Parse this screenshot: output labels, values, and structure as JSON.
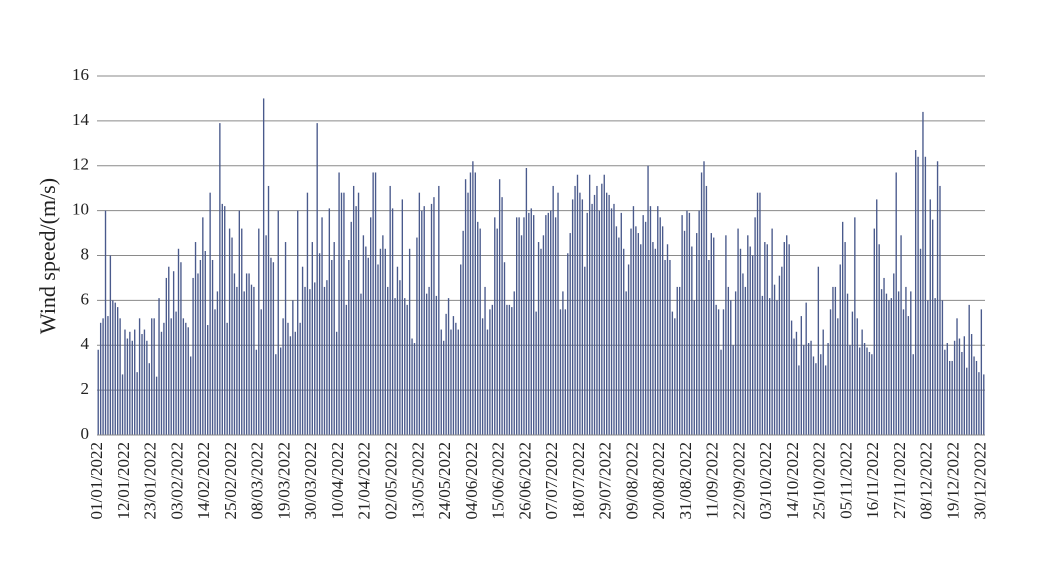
{
  "chart_data": {
    "type": "bar",
    "y_label": "Wind speed/(m/s)",
    "color": "#4a5a8c",
    "grid": true,
    "ylim": [
      0,
      16
    ],
    "yticks": [
      0,
      2,
      4,
      6,
      8,
      10,
      12,
      14,
      16
    ],
    "categories": [
      "01/01/2022",
      null,
      null,
      null,
      null,
      null,
      null,
      null,
      null,
      null,
      null,
      "12/01/2022",
      null,
      null,
      null,
      null,
      null,
      null,
      null,
      null,
      null,
      null,
      "23/01/2022",
      null,
      null,
      null,
      null,
      null,
      null,
      null,
      null,
      null,
      null,
      "03/02/2022",
      null,
      null,
      null,
      null,
      null,
      null,
      null,
      null,
      null,
      null,
      "14/02/2022",
      null,
      null,
      null,
      null,
      null,
      null,
      null,
      null,
      null,
      null,
      "25/02/2022",
      null,
      null,
      null,
      null,
      null,
      null,
      null,
      null,
      null,
      null,
      "08/03/2022",
      null,
      null,
      null,
      null,
      null,
      null,
      null,
      null,
      null,
      null,
      "19/03/2022",
      null,
      null,
      null,
      null,
      null,
      null,
      null,
      null,
      null,
      null,
      "30/03/2022",
      null,
      null,
      null,
      null,
      null,
      null,
      null,
      null,
      null,
      null,
      "10/04/2022",
      null,
      null,
      null,
      null,
      null,
      null,
      null,
      null,
      null,
      null,
      "21/04/2022",
      null,
      null,
      null,
      null,
      null,
      null,
      null,
      null,
      null,
      null,
      "02/05/2022",
      null,
      null,
      null,
      null,
      null,
      null,
      null,
      null,
      null,
      null,
      "13/05/2022",
      null,
      null,
      null,
      null,
      null,
      null,
      null,
      null,
      null,
      null,
      "24/05/2022",
      null,
      null,
      null,
      null,
      null,
      null,
      null,
      null,
      null,
      null,
      "04/06/2022",
      null,
      null,
      null,
      null,
      null,
      null,
      null,
      null,
      null,
      null,
      "15/06/2022",
      null,
      null,
      null,
      null,
      null,
      null,
      null,
      null,
      null,
      null,
      "26/06/2022",
      null,
      null,
      null,
      null,
      null,
      null,
      null,
      null,
      null,
      null,
      "07/07/2022",
      null,
      null,
      null,
      null,
      null,
      null,
      null,
      null,
      null,
      null,
      "18/07/2022",
      null,
      null,
      null,
      null,
      null,
      null,
      null,
      null,
      null,
      null,
      "29/07/2022",
      null,
      null,
      null,
      null,
      null,
      null,
      null,
      null,
      null,
      null,
      "09/08/2022",
      null,
      null,
      null,
      null,
      null,
      null,
      null,
      null,
      null,
      null,
      "20/08/2022",
      null,
      null,
      null,
      null,
      null,
      null,
      null,
      null,
      null,
      null,
      "31/08/2022",
      null,
      null,
      null,
      null,
      null,
      null,
      null,
      null,
      null,
      null,
      "11/09/2022",
      null,
      null,
      null,
      null,
      null,
      null,
      null,
      null,
      null,
      null,
      "22/09/2022",
      null,
      null,
      null,
      null,
      null,
      null,
      null,
      null,
      null,
      null,
      "03/10/2022",
      null,
      null,
      null,
      null,
      null,
      null,
      null,
      null,
      null,
      null,
      "14/10/2022",
      null,
      null,
      null,
      null,
      null,
      null,
      null,
      null,
      null,
      null,
      "25/10/2022",
      null,
      null,
      null,
      null,
      null,
      null,
      null,
      null,
      null,
      null,
      "05/11/2022",
      null,
      null,
      null,
      null,
      null,
      null,
      null,
      null,
      null,
      null,
      "16/11/2022",
      null,
      null,
      null,
      null,
      null,
      null,
      null,
      null,
      null,
      null,
      "27/11/2022",
      null,
      null,
      null,
      null,
      null,
      null,
      null,
      null,
      null,
      null,
      "08/12/2022",
      null,
      null,
      null,
      null,
      null,
      null,
      null,
      null,
      null,
      null,
      "19/12/2022",
      null,
      null,
      null,
      null,
      null,
      null,
      null,
      null,
      null,
      null,
      "30/12/2022",
      null
    ],
    "values": [
      3.8,
      5.0,
      5.2,
      10.0,
      5.3,
      8.0,
      6.0,
      5.9,
      5.7,
      5.2,
      2.7,
      4.7,
      4.3,
      4.6,
      4.2,
      4.7,
      2.8,
      5.2,
      4.5,
      4.7,
      4.2,
      3.2,
      5.2,
      5.2,
      2.6,
      6.1,
      4.6,
      5.0,
      7.0,
      7.5,
      5.2,
      7.3,
      5.5,
      8.3,
      7.7,
      5.2,
      5.0,
      4.8,
      3.5,
      7.0,
      8.6,
      7.2,
      7.8,
      9.7,
      8.2,
      4.9,
      10.8,
      7.8,
      5.6,
      6.4,
      13.9,
      10.3,
      10.2,
      5.0,
      9.2,
      8.8,
      7.2,
      6.6,
      10.0,
      9.2,
      6.4,
      7.2,
      7.2,
      6.7,
      6.6,
      3.8,
      9.2,
      5.6,
      15.0,
      8.9,
      11.1,
      7.9,
      7.7,
      3.6,
      10.0,
      3.9,
      5.2,
      8.6,
      5.0,
      4.4,
      6.0,
      4.6,
      10.0,
      5.0,
      7.5,
      6.6,
      10.8,
      6.5,
      8.6,
      6.8,
      13.9,
      8.1,
      9.7,
      6.6,
      6.9,
      10.1,
      7.8,
      8.6,
      4.6,
      11.7,
      10.8,
      10.8,
      5.8,
      7.8,
      9.5,
      11.1,
      10.2,
      10.8,
      6.3,
      8.9,
      8.4,
      7.9,
      9.7,
      11.7,
      11.7,
      7.6,
      8.3,
      8.9,
      8.3,
      6.6,
      11.1,
      10.1,
      6.1,
      7.5,
      6.9,
      10.5,
      6.1,
      5.8,
      8.3,
      4.3,
      4.1,
      8.8,
      10.8,
      10.0,
      10.2,
      6.3,
      6.6,
      10.3,
      10.6,
      6.2,
      11.1,
      4.7,
      4.2,
      5.4,
      6.1,
      4.7,
      5.3,
      5.0,
      4.7,
      7.6,
      9.1,
      11.4,
      10.8,
      11.7,
      12.2,
      11.7,
      9.5,
      9.2,
      5.2,
      6.6,
      4.7,
      5.6,
      5.8,
      9.7,
      9.2,
      11.4,
      10.6,
      7.7,
      5.8,
      5.8,
      5.7,
      6.4,
      9.7,
      9.7,
      8.9,
      9.7,
      11.9,
      9.9,
      10.1,
      9.8,
      5.5,
      8.6,
      8.3,
      8.9,
      9.8,
      9.9,
      10.0,
      11.1,
      9.7,
      10.8,
      5.6,
      6.4,
      5.6,
      8.1,
      9.0,
      10.5,
      11.1,
      11.6,
      10.8,
      10.5,
      7.5,
      9.9,
      11.6,
      10.3,
      10.7,
      11.1,
      10.0,
      11.2,
      11.6,
      10.8,
      10.7,
      10.1,
      10.3,
      9.3,
      8.8,
      9.9,
      8.3,
      6.4,
      7.6,
      9.2,
      10.2,
      9.3,
      9.0,
      8.5,
      9.8,
      9.5,
      12.0,
      10.2,
      8.6,
      8.3,
      10.2,
      9.7,
      9.3,
      7.8,
      8.5,
      7.8,
      5.5,
      5.2,
      6.6,
      6.6,
      9.8,
      9.1,
      10.0,
      9.9,
      8.4,
      6.0,
      9.0,
      10.0,
      11.7,
      12.2,
      11.1,
      7.8,
      9.0,
      8.8,
      5.8,
      5.6,
      3.8,
      5.6,
      8.9,
      6.6,
      6.0,
      4.0,
      6.4,
      9.2,
      8.3,
      7.2,
      6.6,
      8.9,
      8.4,
      8.0,
      9.7,
      10.8,
      10.8,
      6.2,
      8.6,
      8.5,
      6.1,
      9.2,
      6.7,
      6.0,
      7.1,
      7.5,
      8.6,
      8.9,
      8.5,
      5.1,
      4.3,
      4.6,
      3.1,
      5.3,
      4.0,
      5.9,
      4.1,
      4.2,
      3.5,
      3.2,
      7.5,
      3.6,
      4.7,
      3.1,
      4.1,
      5.6,
      6.6,
      6.6,
      5.2,
      7.6,
      9.5,
      8.6,
      6.3,
      4.0,
      5.5,
      9.7,
      5.2,
      3.9,
      4.7,
      4.1,
      3.9,
      3.7,
      3.6,
      9.2,
      10.5,
      8.5,
      6.5,
      7.0,
      6.3,
      6.0,
      6.1,
      7.2,
      11.7,
      6.4,
      8.9,
      5.6,
      6.6,
      5.3,
      6.4,
      3.6,
      12.7,
      12.4,
      8.3,
      14.4,
      12.4,
      6.0,
      10.5,
      9.6,
      6.1,
      12.2,
      11.1,
      6.0,
      3.8,
      4.1,
      3.3,
      3.3,
      4.2,
      5.2,
      4.3,
      3.7,
      4.4,
      3.0,
      5.8,
      4.5,
      3.5,
      3.3,
      2.8,
      5.6,
      2.7
    ]
  }
}
